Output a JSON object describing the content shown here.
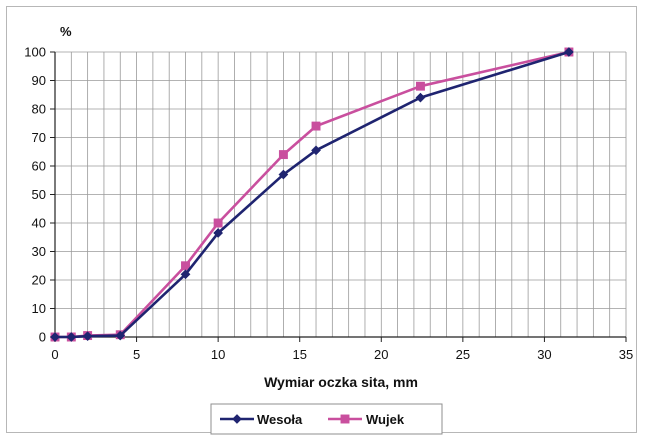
{
  "chart_data": {
    "type": "line",
    "title": "",
    "ylabel": "%",
    "xlabel": "Wymiar oczka sita, mm",
    "xlim": [
      0,
      35
    ],
    "ylim": [
      0,
      100
    ],
    "x_ticks": [
      0,
      5,
      10,
      15,
      20,
      25,
      30,
      35
    ],
    "y_ticks": [
      0,
      10,
      20,
      30,
      40,
      50,
      60,
      70,
      80,
      90,
      100
    ],
    "x_tick_labels": [
      "0",
      "5",
      "10",
      "15",
      "20",
      "25",
      "30",
      "35"
    ],
    "y_tick_labels": [
      "0",
      "10",
      "20",
      "30",
      "40",
      "50",
      "60",
      "70",
      "80",
      "90",
      "100"
    ],
    "grid": true,
    "grid_minor_x": 1,
    "legend_position": "bottom",
    "series": [
      {
        "name": "Wesoła",
        "color": "#1f2470",
        "marker": "diamond",
        "x": [
          0,
          1,
          2,
          4,
          8,
          10,
          14,
          16,
          22.4,
          31.5
        ],
        "y": [
          0,
          0,
          0.3,
          0.5,
          22,
          36.5,
          57,
          65.5,
          84,
          100
        ]
      },
      {
        "name": "Wujek",
        "color": "#c94f9e",
        "marker": "square",
        "x": [
          0,
          1,
          2,
          4,
          8,
          10,
          14,
          16,
          22.4,
          31.5
        ],
        "y": [
          0,
          0,
          0.5,
          0.8,
          25,
          40,
          64,
          74,
          88,
          100
        ]
      }
    ]
  }
}
